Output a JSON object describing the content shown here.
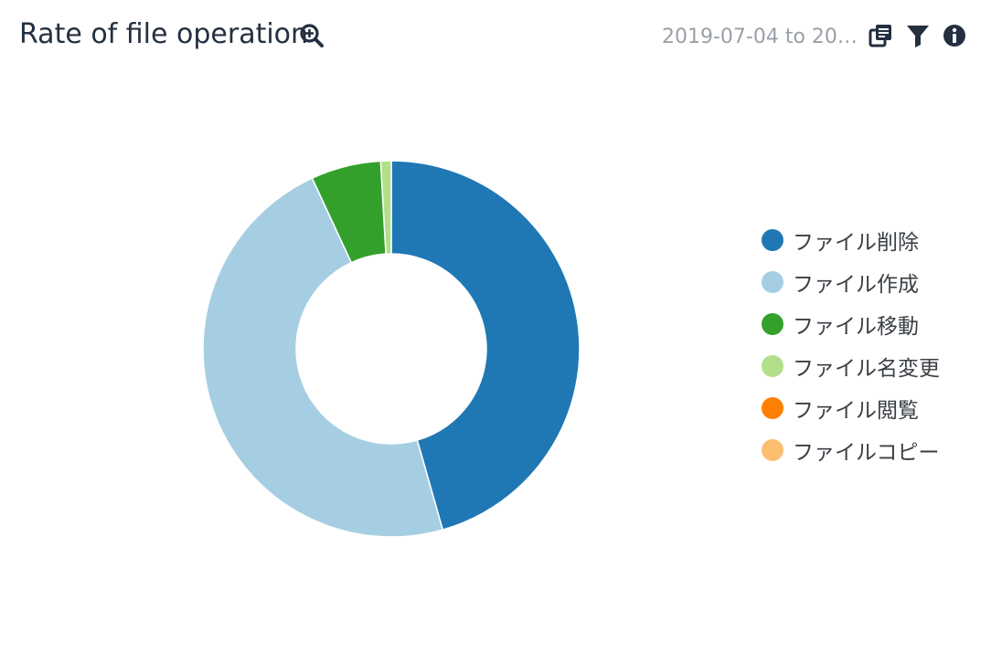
{
  "header": {
    "title": "Rate of file operation",
    "date_range": "2019-07-04 to 201…",
    "icons": {
      "zoom": "zoom-in-icon",
      "copy": "copy-icon",
      "filter": "filter-icon",
      "info": "info-icon"
    }
  },
  "chart_data": {
    "type": "pie",
    "donut": true,
    "categories": [
      "ファイル削除",
      "ファイル作成",
      "ファイル移動",
      "ファイル名変更",
      "ファイル閲覧",
      "ファイルコピー"
    ],
    "values": [
      45.6,
      47.5,
      6.0,
      0.9,
      0.0,
      0.0
    ],
    "colors": [
      "#1f78b4",
      "#a6cee3",
      "#33a02c",
      "#b2df8a",
      "#ff7f00",
      "#fdbf6f"
    ],
    "legend_position": "right",
    "title": "Rate of file operation",
    "xlabel": "",
    "ylabel": ""
  }
}
